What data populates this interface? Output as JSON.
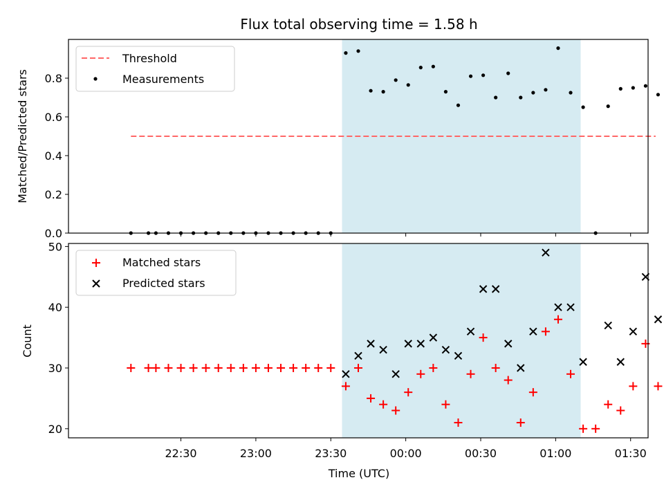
{
  "chart_data": {
    "title": "Flux total observing time = 1.58 h",
    "xlabel": "Time (UTC)",
    "x_ticks": [
      "22:30",
      "23:00",
      "23:30",
      "00:00",
      "00:30",
      "01:00",
      "01:30"
    ],
    "x_tick_minutes": [
      -90,
      -60,
      -30,
      0,
      30,
      60,
      90
    ],
    "xlim_minutes": [
      -135,
      97
    ],
    "highlight_span_minutes": [
      -25.5,
      70
    ],
    "highlight_color": "#add8e6",
    "panels": [
      {
        "type": "scatter",
        "ylabel": "Matched/Predicted stars",
        "ylim": [
          0,
          1.0
        ],
        "yticks": [
          0.0,
          0.2,
          0.4,
          0.6,
          0.8
        ],
        "ytick_labels": [
          "0.0",
          "0.2",
          "0.4",
          "0.6",
          "0.8"
        ],
        "legend_position": "top-left",
        "threshold": {
          "name": "Threshold",
          "value": 0.5,
          "x_range_minutes": [
            -110,
            100
          ],
          "color": "#ff6666",
          "style": "dashed"
        },
        "series": [
          {
            "name": "Measurements",
            "marker": "dot",
            "color": "#000000",
            "x_minutes": [
              -110,
              -103,
              -100,
              -95,
              -90,
              -85,
              -80,
              -75,
              -70,
              -65,
              -60,
              -55,
              -50,
              -45,
              -40,
              -35,
              -30,
              -24,
              -19,
              -14,
              -9,
              -4,
              1,
              6,
              11,
              16,
              21,
              26,
              31,
              36,
              41,
              46,
              51,
              56,
              61,
              66,
              71,
              76,
              81,
              86,
              91,
              96,
              101
            ],
            "y": [
              0,
              0,
              0,
              0,
              0,
              0,
              0,
              0,
              0,
              0,
              0,
              0,
              0,
              0,
              0,
              0,
              0,
              0.93,
              0.94,
              0.735,
              0.73,
              0.79,
              0.765,
              0.855,
              0.86,
              0.73,
              0.66,
              0.81,
              0.815,
              0.7,
              0.825,
              0.7,
              0.725,
              0.74,
              0.955,
              0.725,
              0.65,
              0,
              0.655,
              0.745,
              0.75,
              0.76,
              0.715
            ]
          }
        ]
      },
      {
        "type": "scatter",
        "ylabel": "Count",
        "ylim": [
          18.5,
          50.5
        ],
        "yticks": [
          20,
          30,
          40,
          50
        ],
        "ytick_labels": [
          "20",
          "30",
          "40",
          "50"
        ],
        "legend_position": "top-left",
        "series": [
          {
            "name": "Matched stars",
            "marker": "plus",
            "color": "#ff0000",
            "x_minutes": [
              -110,
              -103,
              -100,
              -95,
              -90,
              -85,
              -80,
              -75,
              -70,
              -65,
              -60,
              -55,
              -50,
              -45,
              -40,
              -35,
              -30,
              -24,
              -19,
              -14,
              -9,
              -4,
              1,
              6,
              11,
              16,
              21,
              26,
              31,
              36,
              41,
              46,
              51,
              56,
              61,
              66,
              71,
              76,
              81,
              86,
              91,
              96,
              101
            ],
            "y": [
              30,
              30,
              30,
              30,
              30,
              30,
              30,
              30,
              30,
              30,
              30,
              30,
              30,
              30,
              30,
              30,
              30,
              27,
              30,
              25,
              24,
              23,
              26,
              29,
              30,
              24,
              21,
              29,
              35,
              30,
              28,
              21,
              26,
              36,
              38,
              29,
              20,
              20,
              24,
              23,
              27,
              34,
              27
            ]
          },
          {
            "name": "Predicted stars",
            "marker": "x",
            "color": "#000000",
            "x_minutes": [
              -24,
              -19,
              -14,
              -9,
              -4,
              1,
              6,
              11,
              16,
              21,
              26,
              31,
              36,
              41,
              46,
              51,
              56,
              61,
              66,
              71,
              81,
              86,
              91,
              96,
              101
            ],
            "y": [
              29,
              32,
              34,
              33,
              29,
              34,
              34,
              35,
              33,
              32,
              36,
              43,
              43,
              34,
              30,
              36,
              49,
              40,
              40,
              31,
              37,
              31,
              36,
              45,
              38
            ]
          }
        ]
      }
    ]
  }
}
